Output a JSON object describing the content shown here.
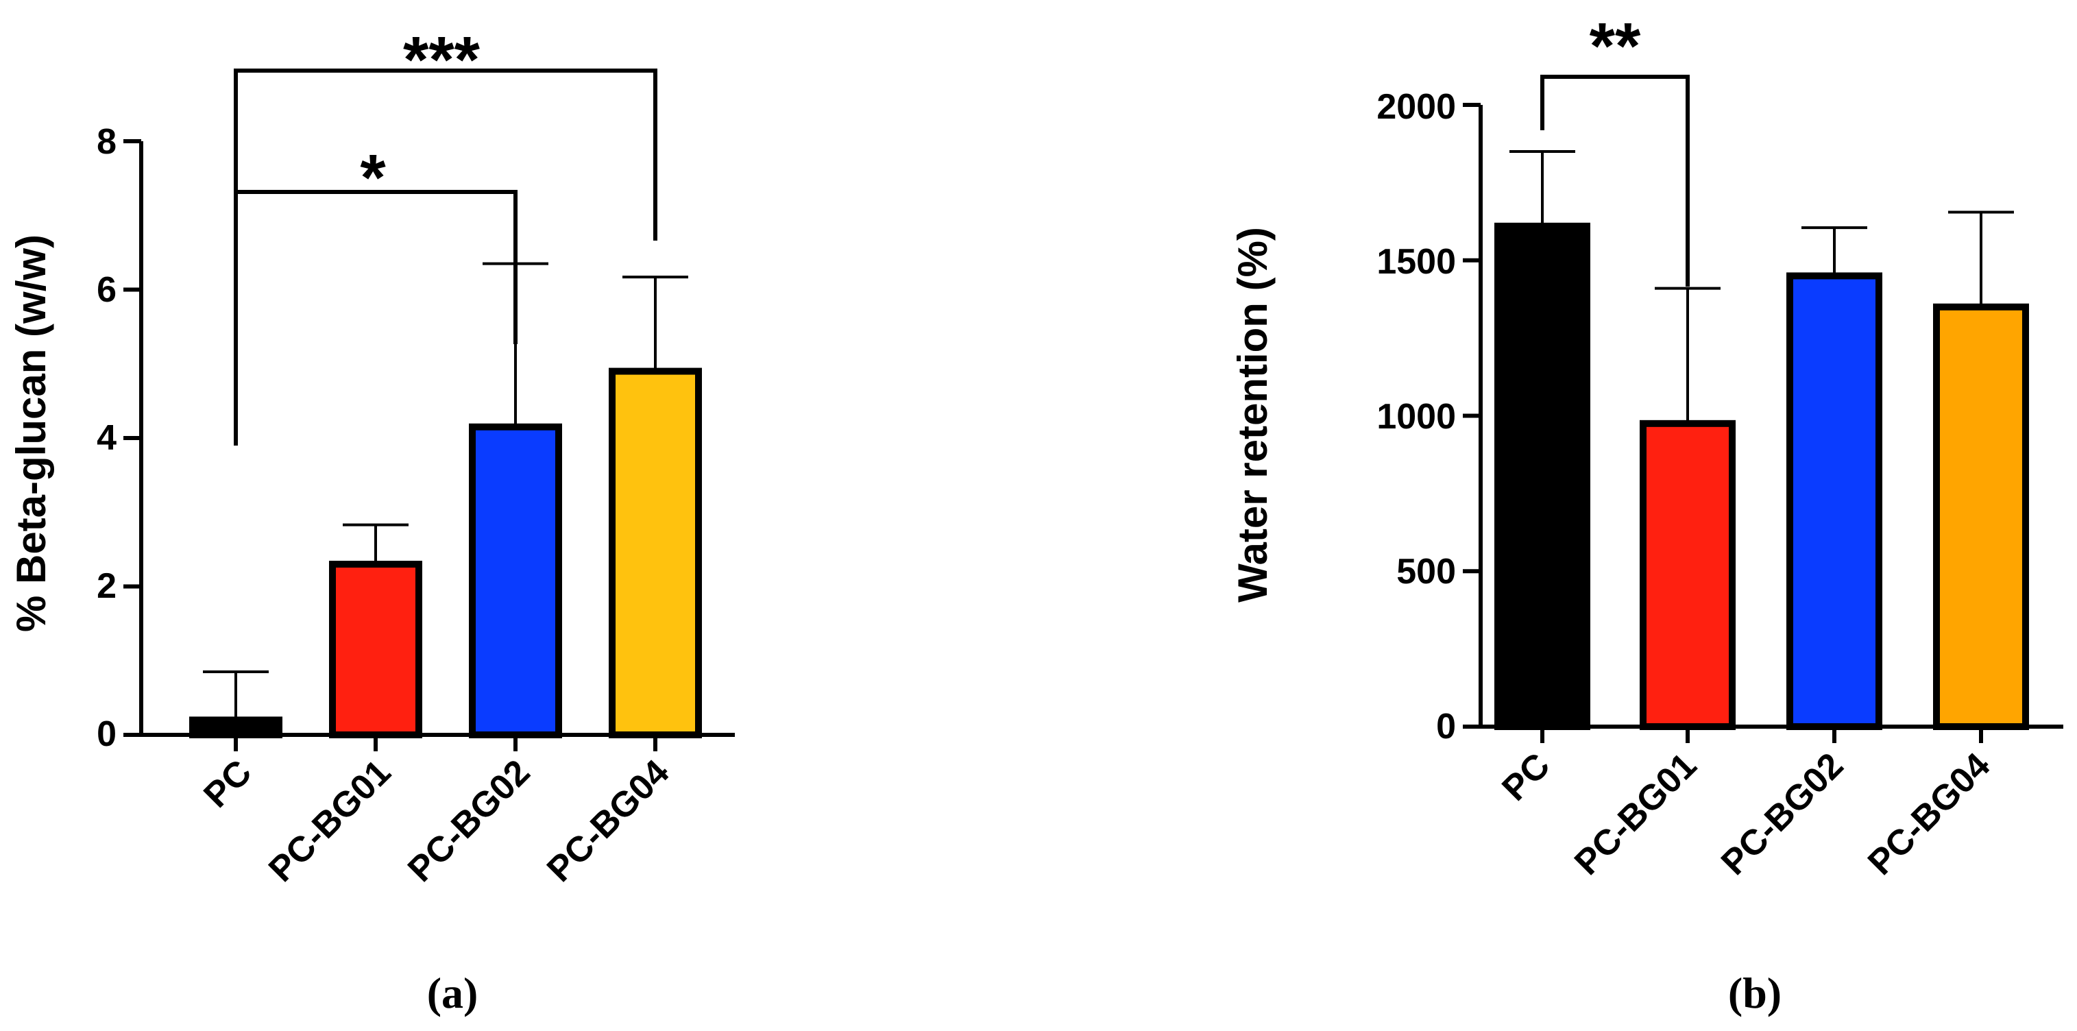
{
  "chart_data": [
    {
      "panel": "(a)",
      "type": "bar",
      "categories": [
        "PC",
        "PC-BG01",
        "PC-BG02",
        "PC-BG04"
      ],
      "values": [
        0.2,
        2.3,
        4.15,
        4.9
      ],
      "errors": [
        0.65,
        0.53,
        2.2,
        1.27
      ],
      "colors": [
        "#000000",
        "#ff2010",
        "#0a3cff",
        "#ffc20e"
      ],
      "ylabel": "% Beta-glucan (w/w)",
      "ylim": [
        0,
        8
      ],
      "yticks": [
        "0",
        "2",
        "4",
        "6",
        "8"
      ],
      "significance": [
        {
          "from": "PC",
          "to": "PC-BG02",
          "label": "*"
        },
        {
          "from": "PC",
          "to": "PC-BG04",
          "label": "***"
        }
      ]
    },
    {
      "panel": "(b)",
      "type": "bar",
      "categories": [
        "PC",
        "PC-BG01",
        "PC-BG02",
        "PC-BG04"
      ],
      "values": [
        1610,
        975,
        1450,
        1350
      ],
      "errors": [
        240,
        435,
        155,
        305
      ],
      "colors": [
        "#000000",
        "#ff2010",
        "#0a3cff",
        "#ffa500"
      ],
      "ylabel": "Water retention (%)",
      "ylim": [
        0,
        2000
      ],
      "yticks": [
        "0",
        "500",
        "1000",
        "1500",
        "2000"
      ],
      "significance": [
        {
          "from": "PC",
          "to": "PC-BG01",
          "label": "**"
        }
      ]
    }
  ]
}
